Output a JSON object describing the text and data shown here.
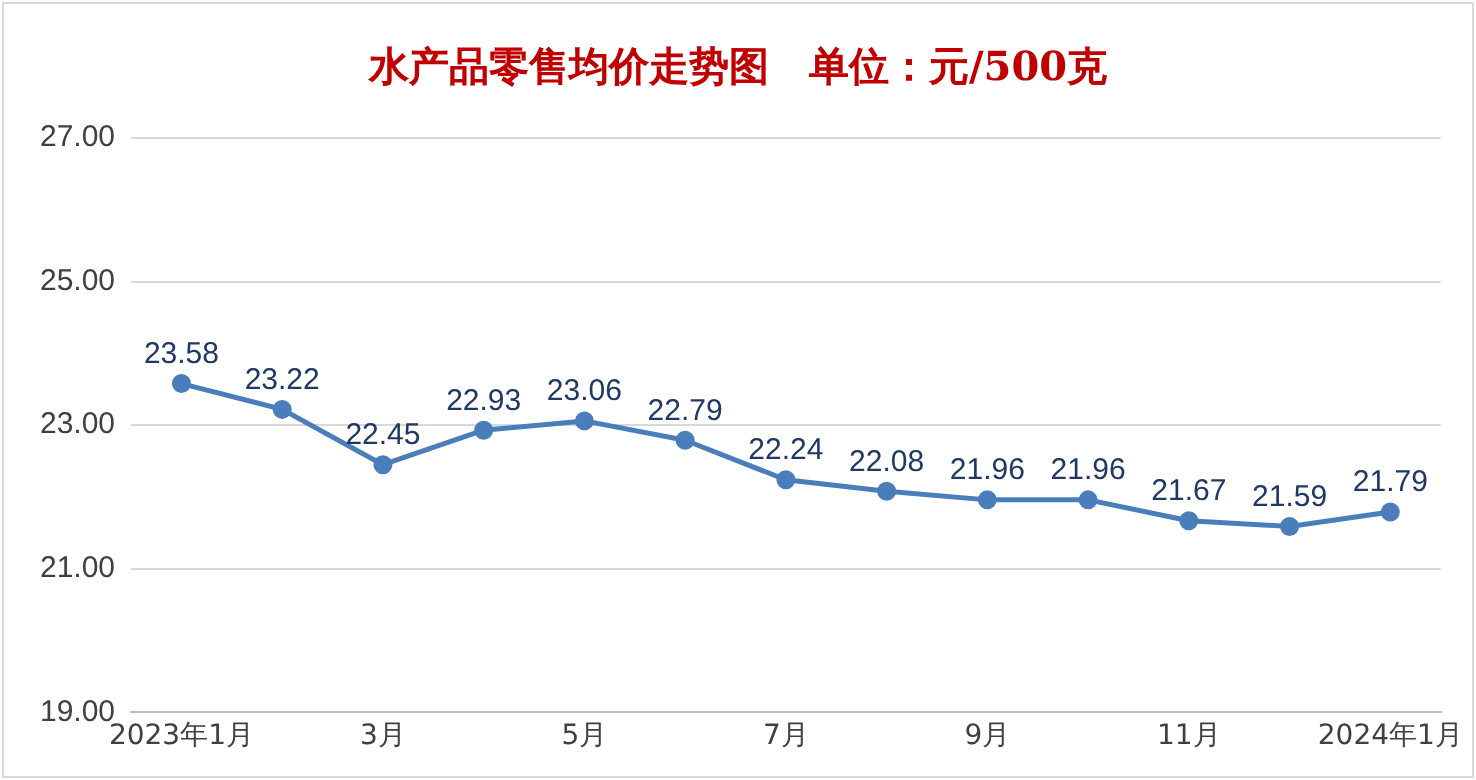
{
  "chart_data": {
    "type": "line",
    "title": "水产品零售均价走势图　单位：元/500克",
    "categories": [
      "2023年1月",
      null,
      "3月",
      null,
      "5月",
      null,
      "7月",
      null,
      "9月",
      null,
      "11月",
      null,
      "2024年1月"
    ],
    "series": [
      {
        "color": "#4a7ebb",
        "values": [
          23.58,
          23.22,
          22.45,
          22.93,
          23.06,
          22.79,
          22.24,
          22.08,
          21.96,
          21.96,
          21.67,
          21.59,
          21.79
        ]
      }
    ],
    "ylim": [
      19,
      27
    ],
    "yticks": [
      {
        "value": 19,
        "label": "19.00"
      },
      {
        "value": 21,
        "label": "21.00"
      },
      {
        "value": 23,
        "label": "23.00"
      },
      {
        "value": 25,
        "label": "25.00"
      },
      {
        "value": 27,
        "label": "27.00"
      }
    ],
    "grid": "y",
    "legend": false,
    "marker": "circle",
    "line_style": "solid",
    "data_labels": true
  }
}
